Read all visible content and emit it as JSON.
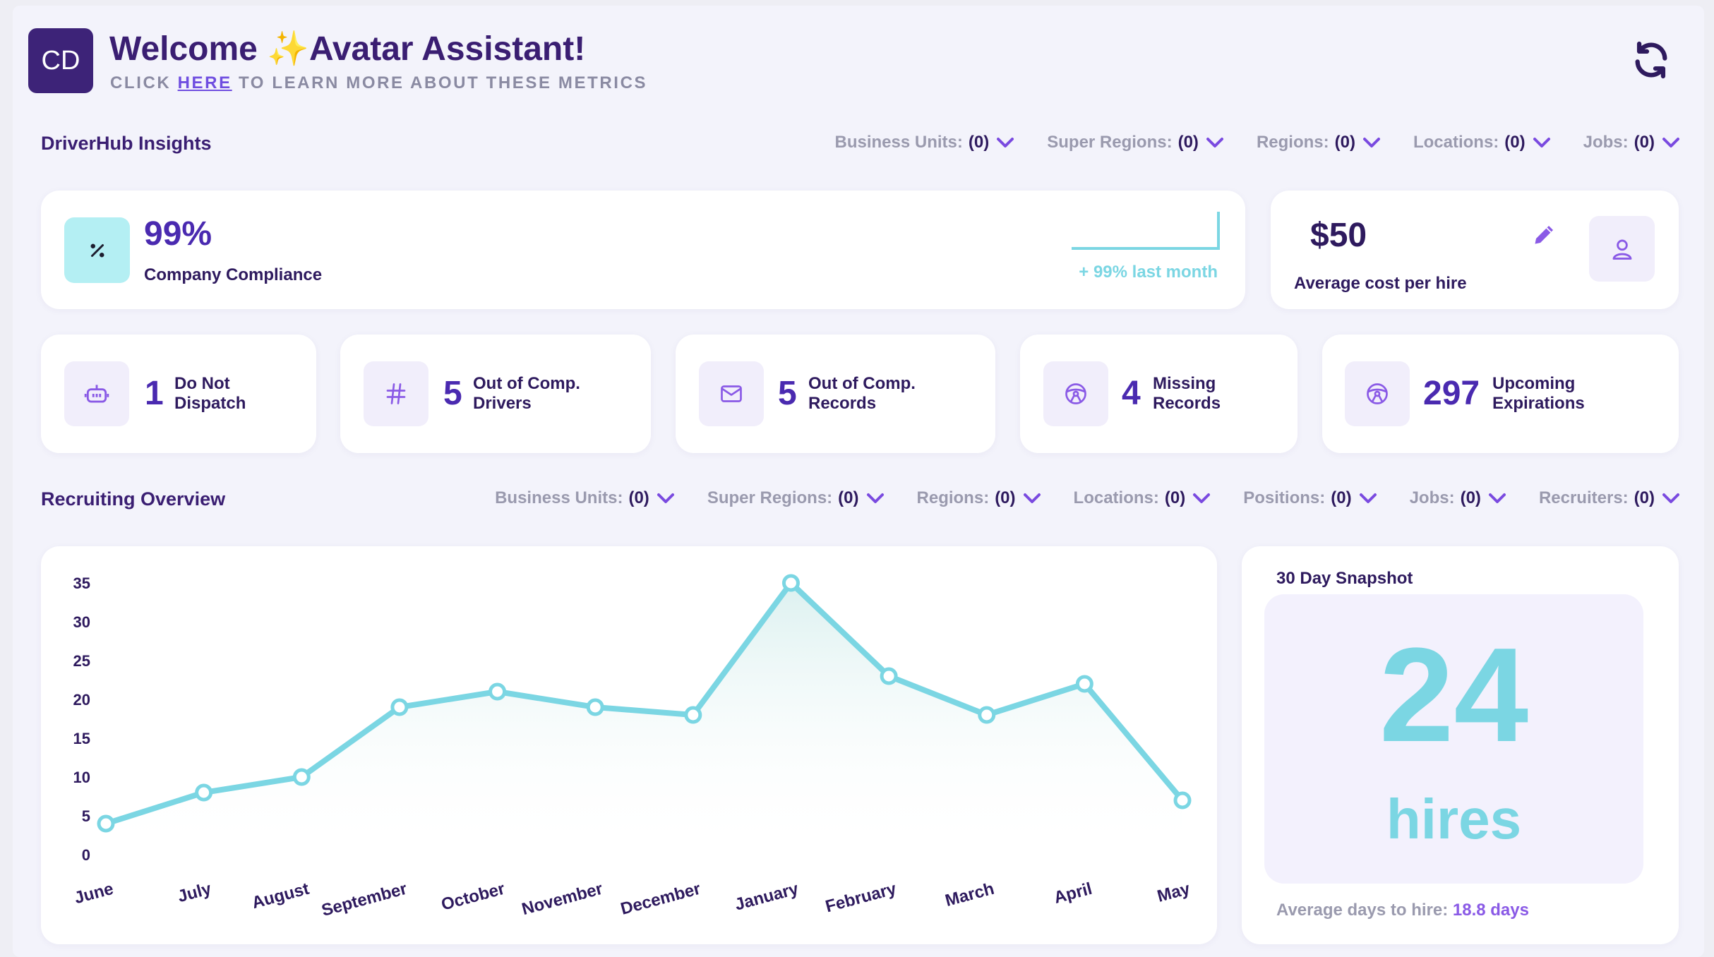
{
  "header": {
    "avatar_initials": "CD",
    "title": "Welcome ✨Avatar Assistant!",
    "subtitle_before": "CLICK ",
    "subtitle_link": "HERE",
    "subtitle_after": " TO LEARN MORE ABOUT THESE METRICS",
    "refresh_icon": "refresh-icon"
  },
  "insights": {
    "title": "DriverHub Insights",
    "filters": [
      {
        "label": "Business Units:",
        "count": "(0)"
      },
      {
        "label": "Super Regions:",
        "count": "(0)"
      },
      {
        "label": "Regions:",
        "count": "(0)"
      },
      {
        "label": "Locations:",
        "count": "(0)"
      },
      {
        "label": "Jobs:",
        "count": "(0)"
      }
    ],
    "compliance": {
      "value": "99%",
      "label": "Company Compliance",
      "trend": "+ 99% last month",
      "icon": "percent-icon"
    },
    "cost": {
      "value": "$50",
      "label": "Average cost per hire",
      "edit_icon": "pencil-icon",
      "user_icon": "user-icon"
    },
    "kpis": [
      {
        "value": "1",
        "line1": "Do Not",
        "line2": "Dispatch",
        "icon": "robot-icon"
      },
      {
        "value": "5",
        "line1": "Out of Comp.",
        "line2": "Drivers",
        "icon": "hash-icon"
      },
      {
        "value": "5",
        "line1": "Out of Comp.",
        "line2": "Records",
        "icon": "mail-icon"
      },
      {
        "value": "4",
        "line1": "Missing",
        "line2": "Records",
        "icon": "steering-wheel-icon"
      },
      {
        "value": "297",
        "line1": "Upcoming",
        "line2": "Expirations",
        "icon": "steering-wheel-icon"
      }
    ]
  },
  "recruiting": {
    "title": "Recruiting Overview",
    "filters": [
      {
        "label": "Business Units:",
        "count": "(0)"
      },
      {
        "label": "Super Regions:",
        "count": "(0)"
      },
      {
        "label": "Regions:",
        "count": "(0)"
      },
      {
        "label": "Locations:",
        "count": "(0)"
      },
      {
        "label": "Positions:",
        "count": "(0)"
      },
      {
        "label": "Jobs:",
        "count": "(0)"
      },
      {
        "label": "Recruiters:",
        "count": "(0)"
      }
    ],
    "snapshot": {
      "title": "30 Day Snapshot",
      "value": "24",
      "unit": "hires",
      "avg_label": "Average days to hire:",
      "avg_value": "18.8 days"
    }
  },
  "colors": {
    "accent": "#4a2ab0",
    "chart_line": "#7bd6e3",
    "icon_purple": "#8a5ae6"
  },
  "chart_data": {
    "type": "line",
    "categories": [
      "June",
      "July",
      "August",
      "September",
      "October",
      "November",
      "December",
      "January",
      "February",
      "March",
      "April",
      "May"
    ],
    "series": [
      {
        "values": [
          4,
          8,
          10,
          19,
          21,
          19,
          18,
          35,
          23,
          18,
          22,
          7
        ]
      }
    ],
    "y_ticks": [
      0,
      5,
      10,
      15,
      20,
      25,
      30,
      35
    ],
    "ylim": [
      0,
      35
    ],
    "grid": false,
    "title": "",
    "xlabel": "",
    "ylabel": ""
  }
}
